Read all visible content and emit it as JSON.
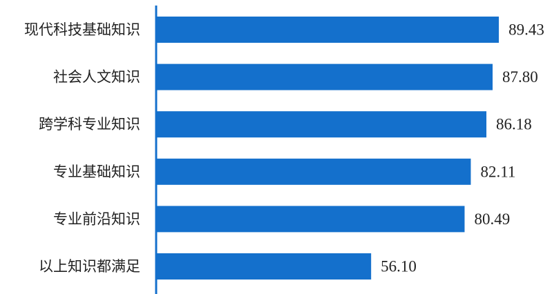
{
  "chart_data": {
    "type": "bar",
    "orientation": "horizontal",
    "categories": [
      "现代科技基础知识",
      "社会人文知识",
      "跨学科专业知识",
      "专业基础知识",
      "专业前沿知识",
      "以上知识都满足"
    ],
    "values": [
      89.43,
      87.8,
      86.18,
      82.11,
      80.49,
      56.1
    ],
    "value_labels": [
      "89.43",
      "87.80",
      "86.18",
      "82.11",
      "80.49",
      "56.10"
    ],
    "xlim": [
      0,
      100
    ],
    "grid": false,
    "bar_color": "#1470CC",
    "axis_color": "#1470CC"
  }
}
